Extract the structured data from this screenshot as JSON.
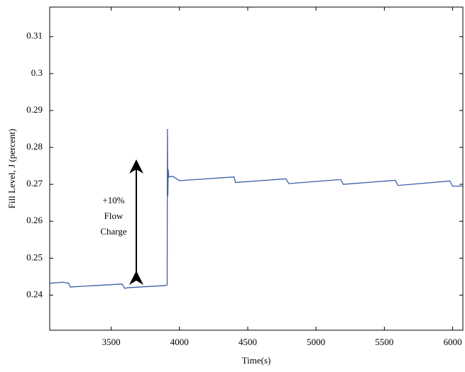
{
  "chart_data": {
    "type": "line",
    "x_label": "Time(s)",
    "y_label": "Fill Level, J (percent)",
    "annotation": [
      "+10%",
      "Flow",
      "Charge"
    ],
    "x": [
      3050,
      3150,
      3190,
      3200,
      3580,
      3600,
      3620,
      3900,
      3910,
      3912,
      3915,
      3918,
      3922,
      3950,
      4000,
      4400,
      4410,
      4780,
      4800,
      5180,
      5200,
      5580,
      5600,
      5980,
      6000,
      6075
    ],
    "series": [
      {
        "color": "#3a5fa8",
        "values": [
          0.2432,
          0.2435,
          0.2432,
          0.2422,
          0.243,
          0.2418,
          0.242,
          0.2426,
          0.2428,
          0.285,
          0.2668,
          0.274,
          0.272,
          0.2722,
          0.271,
          0.272,
          0.2705,
          0.2715,
          0.2702,
          0.2713,
          0.27,
          0.2711,
          0.2697,
          0.2709,
          0.2695,
          0.2695
        ]
      }
    ],
    "xlim": [
      3050,
      6075
    ],
    "ylim": [
      0.2305,
      0.318
    ],
    "xticks": [
      3500,
      4000,
      4500,
      5000,
      5500,
      6000
    ],
    "yticks": [
      0.24,
      0.25,
      0.26,
      0.27,
      0.28,
      0.29,
      0.3,
      0.31
    ]
  }
}
